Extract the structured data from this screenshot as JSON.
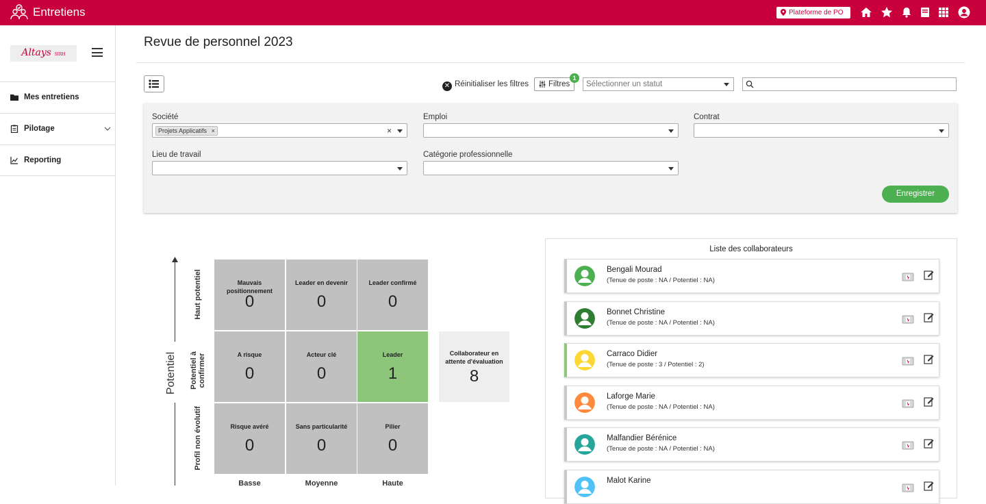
{
  "header": {
    "app_title": "Entretiens",
    "platform_button": "Plateforme de PO",
    "icons": [
      "home-icon",
      "star-icon",
      "bell-icon",
      "book-icon",
      "apps-grid-icon",
      "user-account-icon"
    ]
  },
  "sidebar": {
    "brand": "Altays",
    "brand_sub": "SIRH",
    "items": [
      {
        "label": "Mes entretiens",
        "icon": "folder-icon"
      },
      {
        "label": "Pilotage",
        "icon": "clipboard-icon"
      },
      {
        "label": "Reporting",
        "icon": "chart-line-icon"
      }
    ]
  },
  "page": {
    "title": "Revue de personnel 2023"
  },
  "toolbar": {
    "reset_label": "Réinitialiser les filtres",
    "filters_label": "Filtres",
    "filters_count": "1",
    "status_placeholder": "Sélectionner un statut",
    "search_value": ""
  },
  "filters": {
    "societe_label": "Société",
    "societe_chip": "Projets Applicatifs",
    "emploi_label": "Emploi",
    "contrat_label": "Contrat",
    "lieu_label": "Lieu de travail",
    "categorie_label": "Catégorie professionnelle",
    "save_label": "Enregistrer"
  },
  "matrix": {
    "axis_title": "Potentiel",
    "rows": [
      "Haut potentiel",
      "Potentiel à confirmer",
      "Profil non évolutif"
    ],
    "columns": [
      "Basse",
      "Moyenne",
      "Haute"
    ],
    "cells": [
      [
        {
          "label": "Mauvais positionnement",
          "value": "0"
        },
        {
          "label": "Leader en devenir",
          "value": "0"
        },
        {
          "label": "Leader confirmé",
          "value": "0"
        }
      ],
      [
        {
          "label": "A risque",
          "value": "0"
        },
        {
          "label": "Acteur clé",
          "value": "0"
        },
        {
          "label": "Leader",
          "value": "1"
        }
      ],
      [
        {
          "label": "Risque avéré",
          "value": "0"
        },
        {
          "label": "Sans particularité",
          "value": "0"
        },
        {
          "label": "Pilier",
          "value": "0"
        }
      ]
    ],
    "pending": {
      "label": "Collaborateur en attente d'évaluation",
      "value": "8"
    }
  },
  "collaborators": {
    "title": "Liste des collaborateurs",
    "items": [
      {
        "name": "Bengali Mourad",
        "detail": "(Tenue de poste : NA / Potentiel : NA)",
        "color": "#4caf50"
      },
      {
        "name": "Bonnet Christine",
        "detail": "(Tenue de poste : NA / Potentiel : NA)",
        "color": "#2e7d32"
      },
      {
        "name": "Carraco Didier",
        "detail": "(Tenue de poste : 3 / Potentiel : 2)",
        "color": "#fdd835"
      },
      {
        "name": "Laforge Marie",
        "detail": "(Tenue de poste : NA / Potentiel : NA)",
        "color": "#ff8a3d"
      },
      {
        "name": "Malfandier Bérénice",
        "detail": "(Tenue de poste : NA / Potentiel : NA)",
        "color": "#26a69a"
      },
      {
        "name": "Malot Karine",
        "detail": "",
        "color": "#4fc3f7"
      }
    ]
  },
  "colors": {
    "brand": "#c8003c",
    "accent_green": "#4caf50",
    "matrix_gray": "#c0c0c0",
    "matrix_green": "#8dc57b"
  }
}
